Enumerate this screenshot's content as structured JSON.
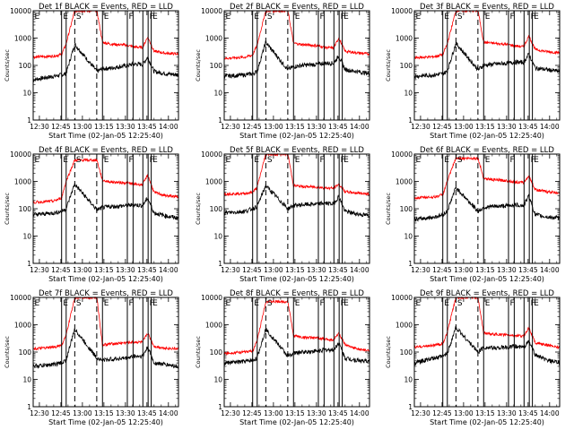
{
  "colors": {
    "background": "#ffffff",
    "events": "#000000",
    "lld": "#ff0000",
    "markers": "#000000"
  },
  "shared": {
    "ylabel": "Counts/sec",
    "xlabel": "Start Time (02-Jan-05 12:25:40)",
    "yscale": "log",
    "ylim": [
      1,
      10000
    ],
    "y_ticks": [
      "1",
      "10",
      "100",
      "1000",
      "10000"
    ],
    "xlim": [
      "12:25:40",
      "14:07:00"
    ],
    "x_ticks": [
      "12:30",
      "12:45",
      "13:00",
      "13:15",
      "13:30",
      "13:45",
      "14:00"
    ],
    "x_tick_minutes": [
      30,
      45,
      60,
      75,
      90,
      105,
      120
    ],
    "xlim_minutes": [
      25.67,
      127
    ],
    "markers": [
      {
        "t": "12:45:30",
        "m": 45.5,
        "style": "solid",
        "letter": "E"
      },
      {
        "t": "12:48:40",
        "m": 48.67,
        "style": "solid",
        "letter": ""
      },
      {
        "t": "12:54:40",
        "m": 54.67,
        "style": "dashed",
        "letter": "S"
      },
      {
        "t": "13:10:00",
        "m": 70.0,
        "style": "dashed",
        "letter": ""
      },
      {
        "t": "13:14:00",
        "m": 74.0,
        "style": "solid",
        "letter": "E"
      },
      {
        "t": "13:31:20",
        "m": 91.33,
        "style": "solid",
        "letter": "F"
      },
      {
        "t": "13:35:20",
        "m": 95.33,
        "style": "solid",
        "letter": ""
      },
      {
        "t": "13:42:10",
        "m": 102.17,
        "style": "solid",
        "letter": ""
      },
      {
        "t": "13:45:50",
        "m": 105.83,
        "style": "solid",
        "letter": "F"
      },
      {
        "t": "13:48:00",
        "m": 108.0,
        "style": "solid",
        "letter": "E"
      }
    ],
    "edge_letters": {
      "left": "E",
      "right": "E"
    }
  },
  "chart_data": [
    {
      "type": "line",
      "title": "Det 1f BLACK = Events, RED = LLD",
      "xlabel": "Start Time (02-Jan-05 12:25:40)",
      "ylabel": "Counts/sec",
      "series": [
        {
          "name": "Events",
          "x": [
            25.67,
            40,
            45.5,
            48.6,
            54.6,
            70.1,
            74,
            80,
            91.3,
            95.3,
            102,
            105.5,
            110,
            118,
            127
          ],
          "y": [
            30,
            40,
            45,
            50,
            600,
            60,
            75,
            80,
            100,
            110,
            110,
            200,
            60,
            50,
            45
          ]
        },
        {
          "name": "LLD",
          "x": [
            25.67,
            40,
            45.5,
            48.6,
            54.6,
            70.1,
            74,
            80,
            91.3,
            95.3,
            102,
            105.5,
            110,
            118,
            127
          ],
          "y": [
            200,
            220,
            250,
            600,
            10000,
            10000,
            700,
            600,
            550,
            480,
            450,
            1100,
            330,
            280,
            260
          ]
        }
      ]
    },
    {
      "type": "line",
      "title": "Det 2f BLACK = Events, RED = LLD",
      "xlabel": "Start Time (02-Jan-05 12:25:40)",
      "ylabel": "Counts/sec",
      "series": [
        {
          "name": "Events",
          "x": [
            25.67,
            40,
            45.5,
            48.6,
            54.6,
            70.1,
            74,
            80,
            91.3,
            95.3,
            102,
            105.5,
            110,
            118,
            127
          ],
          "y": [
            40,
            45,
            50,
            60,
            700,
            70,
            90,
            100,
            110,
            120,
            120,
            220,
            70,
            60,
            50
          ]
        },
        {
          "name": "LLD",
          "x": [
            25.67,
            40,
            45.5,
            48.6,
            54.6,
            70.1,
            74,
            80,
            91.3,
            95.3,
            102,
            105.5,
            110,
            118,
            127
          ],
          "y": [
            180,
            200,
            240,
            550,
            10000,
            10000,
            650,
            580,
            520,
            460,
            430,
            1000,
            330,
            290,
            260
          ]
        }
      ]
    },
    {
      "type": "line",
      "title": "Det 3f BLACK = Events, RED = LLD",
      "xlabel": "Start Time (02-Jan-05 12:25:40)",
      "ylabel": "Counts/sec",
      "series": [
        {
          "name": "Events",
          "x": [
            25.67,
            40,
            45.5,
            48.6,
            54.6,
            70.1,
            74,
            80,
            91.3,
            95.3,
            102,
            105.5,
            110,
            118,
            127
          ],
          "y": [
            40,
            45,
            50,
            60,
            650,
            70,
            100,
            110,
            120,
            130,
            130,
            260,
            80,
            70,
            60
          ]
        },
        {
          "name": "LLD",
          "x": [
            25.67,
            40,
            45.5,
            48.6,
            54.6,
            70.1,
            74,
            80,
            91.3,
            95.3,
            102,
            105.5,
            110,
            118,
            127
          ],
          "y": [
            190,
            210,
            250,
            600,
            10000,
            10000,
            700,
            650,
            580,
            520,
            480,
            1200,
            380,
            320,
            290
          ]
        }
      ]
    },
    {
      "type": "line",
      "title": "Det 4f BLACK = Events, RED = LLD",
      "xlabel": "Start Time (02-Jan-05 12:25:40)",
      "ylabel": "Counts/sec",
      "series": [
        {
          "name": "Events",
          "x": [
            25.67,
            40,
            45.5,
            48.6,
            54.6,
            70.1,
            74,
            80,
            91.3,
            95.3,
            102,
            105.5,
            110,
            118,
            127
          ],
          "y": [
            60,
            70,
            80,
            100,
            800,
            90,
            110,
            120,
            130,
            140,
            130,
            250,
            70,
            55,
            45
          ]
        },
        {
          "name": "LLD",
          "x": [
            25.67,
            40,
            45.5,
            48.6,
            54.6,
            70.1,
            74,
            80,
            91.3,
            95.3,
            102,
            105.5,
            110,
            118,
            127
          ],
          "y": [
            170,
            190,
            250,
            1000,
            6000,
            6000,
            1100,
            950,
            880,
            800,
            760,
            1700,
            400,
            300,
            270
          ]
        }
      ]
    },
    {
      "type": "line",
      "title": "Det 5f BLACK = Events, RED = LLD",
      "xlabel": "Start Time (02-Jan-05 12:25:40)",
      "ylabel": "Counts/sec",
      "series": [
        {
          "name": "Events",
          "x": [
            25.67,
            40,
            45.5,
            48.6,
            54.6,
            70.1,
            74,
            80,
            91.3,
            95.3,
            102,
            105.5,
            110,
            118,
            127
          ],
          "y": [
            70,
            80,
            100,
            120,
            700,
            100,
            130,
            140,
            150,
            160,
            150,
            280,
            80,
            65,
            55
          ]
        },
        {
          "name": "LLD",
          "x": [
            25.67,
            40,
            45.5,
            48.6,
            54.6,
            70.1,
            74,
            80,
            91.3,
            95.3,
            102,
            105.5,
            110,
            118,
            127
          ],
          "y": [
            350,
            360,
            400,
            600,
            10000,
            10000,
            700,
            650,
            620,
            580,
            560,
            800,
            420,
            380,
            350
          ]
        }
      ]
    },
    {
      "type": "line",
      "title": "Det 6f BLACK = Events, RED = LLD",
      "xlabel": "Start Time (02-Jan-05 12:25:40)",
      "ylabel": "Counts/sec",
      "series": [
        {
          "name": "Events",
          "x": [
            25.67,
            40,
            45.5,
            48.6,
            54.6,
            70.1,
            74,
            80,
            91.3,
            95.3,
            102,
            105.5,
            110,
            118,
            127
          ],
          "y": [
            40,
            50,
            60,
            80,
            600,
            80,
            110,
            120,
            130,
            140,
            130,
            300,
            60,
            50,
            45
          ]
        },
        {
          "name": "LLD",
          "x": [
            25.67,
            40,
            45.5,
            48.6,
            54.6,
            70.1,
            74,
            80,
            91.3,
            95.3,
            102,
            105.5,
            110,
            118,
            127
          ],
          "y": [
            250,
            270,
            330,
            1000,
            7000,
            7000,
            1300,
            1150,
            1050,
            950,
            900,
            1600,
            500,
            420,
            380
          ]
        }
      ]
    },
    {
      "type": "line",
      "title": "Det 7f BLACK = Events, RED = LLD",
      "xlabel": "Start Time (02-Jan-05 12:25:40)",
      "ylabel": "Counts/sec",
      "series": [
        {
          "name": "Events",
          "x": [
            25.67,
            40,
            45.5,
            48.6,
            54.6,
            70.1,
            74,
            80,
            91.3,
            95.3,
            102,
            105.5,
            110,
            118,
            127
          ],
          "y": [
            30,
            35,
            40,
            50,
            700,
            60,
            50,
            55,
            60,
            70,
            70,
            150,
            40,
            35,
            30
          ]
        },
        {
          "name": "LLD",
          "x": [
            25.67,
            40,
            45.5,
            48.6,
            54.6,
            70.1,
            74,
            80,
            91.3,
            95.3,
            102,
            105.5,
            110,
            118,
            127
          ],
          "y": [
            130,
            150,
            180,
            400,
            10000,
            10000,
            180,
            200,
            220,
            230,
            230,
            500,
            160,
            140,
            130
          ]
        }
      ]
    },
    {
      "type": "line",
      "title": "Det 8f BLACK = Events, RED = LLD",
      "xlabel": "Start Time (02-Jan-05 12:25:40)",
      "ylabel": "Counts/sec",
      "series": [
        {
          "name": "Events",
          "x": [
            25.67,
            40,
            45.5,
            48.6,
            54.6,
            70.1,
            74,
            80,
            91.3,
            95.3,
            102,
            105.5,
            110,
            118,
            127
          ],
          "y": [
            40,
            45,
            50,
            60,
            700,
            70,
            90,
            100,
            110,
            120,
            120,
            220,
            60,
            50,
            45
          ]
        },
        {
          "name": "LLD",
          "x": [
            25.67,
            40,
            45.5,
            48.6,
            54.6,
            70.1,
            74,
            80,
            91.3,
            95.3,
            102,
            105.5,
            110,
            118,
            127
          ],
          "y": [
            90,
            100,
            110,
            250,
            7000,
            7000,
            400,
            350,
            320,
            300,
            280,
            500,
            180,
            130,
            110
          ]
        }
      ]
    },
    {
      "type": "line",
      "title": "Det 9f BLACK = Events, RED = LLD",
      "xlabel": "Start Time (02-Jan-05 12:25:40)",
      "ylabel": "Counts/sec",
      "series": [
        {
          "name": "Events",
          "x": [
            25.67,
            40,
            45.5,
            48.6,
            54.6,
            70.1,
            74,
            80,
            91.3,
            95.3,
            102,
            105.5,
            110,
            118,
            127
          ],
          "y": [
            40,
            60,
            70,
            90,
            800,
            100,
            150,
            140,
            150,
            160,
            150,
            250,
            80,
            50,
            40
          ]
        },
        {
          "name": "LLD",
          "x": [
            25.67,
            40,
            45.5,
            48.6,
            54.6,
            70.1,
            74,
            80,
            91.3,
            95.3,
            102,
            105.5,
            110,
            118,
            127
          ],
          "y": [
            150,
            180,
            200,
            500,
            10000,
            10000,
            500,
            450,
            420,
            400,
            380,
            800,
            220,
            180,
            150
          ]
        }
      ]
    }
  ]
}
